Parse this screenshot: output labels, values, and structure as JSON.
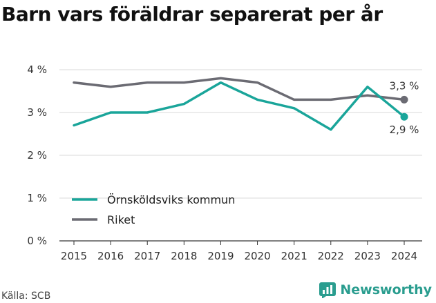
{
  "header": {
    "title": "Barn vars föräldrar separerat per år"
  },
  "footer": {
    "source": "Källa: SCB",
    "brand": "Newsworthy"
  },
  "colors": {
    "series_1": "#1aa59a",
    "series_2": "#6b6b73",
    "grid": "#d9d9d9",
    "brand": "#2a9d8f"
  },
  "chart_data": {
    "type": "line",
    "title": "Barn vars föräldrar separerat per år",
    "xlabel": "",
    "ylabel": "",
    "x": [
      "2015",
      "2016",
      "2017",
      "2018",
      "2019",
      "2020",
      "2021",
      "2022",
      "2023",
      "2024"
    ],
    "ylim": [
      0,
      4
    ],
    "yticks": [
      0,
      1,
      2,
      3,
      4
    ],
    "ytick_labels": [
      "0 %",
      "1 %",
      "2 %",
      "3 %",
      "4 %"
    ],
    "grid": true,
    "legend_position": "lower-left",
    "series": [
      {
        "name": "Örnsköldsviks kommun",
        "values": [
          2.7,
          3.0,
          3.0,
          3.2,
          3.7,
          3.3,
          3.1,
          2.6,
          3.6,
          2.9
        ],
        "end_label": "2,9 %"
      },
      {
        "name": "Riket",
        "values": [
          3.7,
          3.6,
          3.7,
          3.7,
          3.8,
          3.7,
          3.3,
          3.3,
          3.4,
          3.3
        ],
        "end_label": "3,3 %"
      }
    ]
  }
}
